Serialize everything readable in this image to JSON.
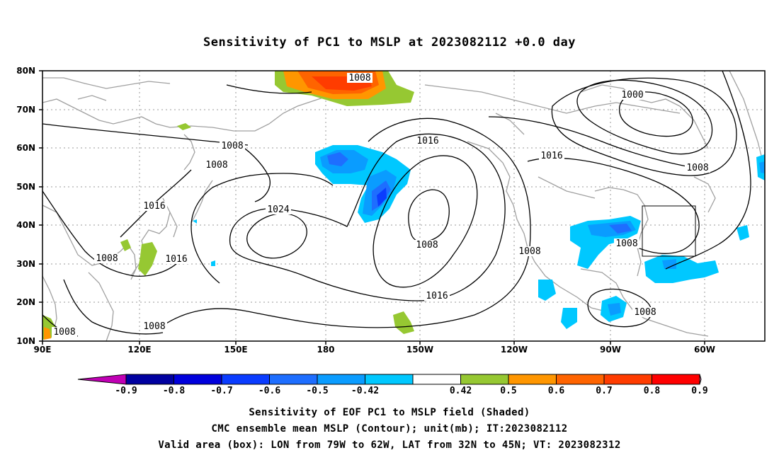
{
  "title": "Sensitivity of PC1 to MSLP at 2023082112 +0.0 day",
  "lat_labels": [
    "80N",
    "70N",
    "60N",
    "50N",
    "40N",
    "30N",
    "20N",
    "10N"
  ],
  "lon_labels": [
    "90E",
    "120E",
    "150E",
    "180",
    "150W",
    "120W",
    "90W",
    "60W"
  ],
  "isobar_labels": [
    "1008",
    "1000",
    "1016",
    "1008",
    "1016",
    "1008",
    "1008",
    "1016",
    "1024",
    "1008",
    "1008",
    "1008",
    "1016",
    "1008",
    "1016",
    "1008",
    "1008",
    "1008"
  ],
  "colorbar": {
    "ticks": [
      "-0.9",
      "-0.8",
      "-0.7",
      "-0.6",
      "-0.5",
      "-0.42",
      "0.42",
      "0.5",
      "0.6",
      "0.7",
      "0.8",
      "0.9"
    ],
    "colors": [
      "#0000a0",
      "#0000dc",
      "#0a3cff",
      "#1e6eff",
      "#0a9cff",
      "#00c8ff",
      "#ffffff",
      "#96c832",
      "#ff9600",
      "#ff6400",
      "#ff3c00",
      "#ff0000"
    ],
    "low_end": "#c000b4",
    "high_end": "#ff9cd2"
  },
  "captions": [
    "Sensitivity of EOF PC1 to MSLP field (Shaded)",
    "CMC ensemble mean MSLP (Contour); unit(mb); IT:2023082112",
    "Valid area (box): LON from 79W to 62W, LAT from 32N to 45N; VT: 2023082312"
  ]
}
